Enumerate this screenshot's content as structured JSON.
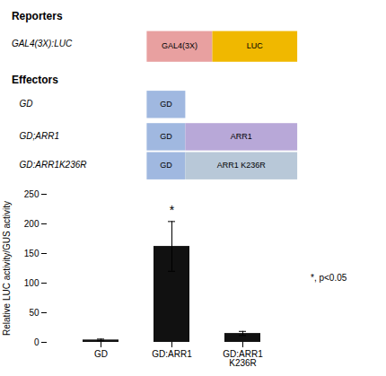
{
  "chart_data": {
    "type": "bar",
    "categories": [
      "GD",
      "GD:ARR1",
      "GD:ARR1\nK236R"
    ],
    "values": [
      4,
      162,
      15
    ],
    "errors": [
      1.5,
      42,
      3.5
    ],
    "color": "#111111",
    "ylabel": "Relative LUC activity/GUS activity",
    "ylim": [
      0,
      250
    ],
    "yticks": [
      0,
      50,
      100,
      150,
      200,
      250
    ],
    "annotations": [
      {
        "text": "Reporters"
      },
      {
        "text": "GAL4(3X):LUC"
      },
      {
        "text": "GAL4(3X)",
        "color": "#e8a0a0"
      },
      {
        "text": "LUC",
        "color": "#f0b800"
      },
      {
        "text": "Effectors"
      },
      {
        "text": "GD"
      },
      {
        "text": "GD",
        "color": "#a0b8e0"
      },
      {
        "text": "GD;ARR1"
      },
      {
        "text": "GD",
        "color": "#a0b8e0"
      },
      {
        "text": "ARR1",
        "color": "#b8a8d8"
      },
      {
        "text": "GD:ARR1K236R"
      },
      {
        "text": "GD",
        "color": "#a0b8e0"
      },
      {
        "text": "ARR1 K236R",
        "color": "#b8c8d8"
      },
      {
        "text": "*",
        "category": "GD:ARR1"
      },
      {
        "text": "*, p<0.05"
      }
    ]
  }
}
